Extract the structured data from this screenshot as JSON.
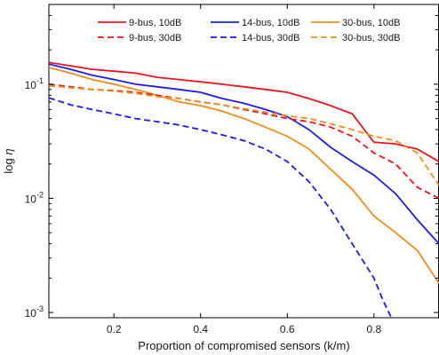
{
  "chart_data": {
    "type": "line",
    "title": "",
    "xlabel": "Proportion of compromised sensors (k/m)",
    "ylabel": "log η",
    "xlim": [
      0.05,
      0.95
    ],
    "ylim": [
      0.0009,
      0.5
    ],
    "yscale": "log",
    "grid": false,
    "legend": "top-right",
    "xticks": [
      0.2,
      0.4,
      0.6,
      0.8
    ],
    "xtick_labels": [
      "0.2",
      "0.4",
      "0.6",
      "0.8"
    ],
    "yticks": [
      0.001,
      0.01,
      0.1
    ],
    "ytick_labels": [
      {
        "base": "10",
        "exp": "-3"
      },
      {
        "base": "10",
        "exp": "-2"
      },
      {
        "base": "10",
        "exp": "-1"
      }
    ],
    "series": [
      {
        "name": "9-bus, 10dB",
        "color": "#e8141c",
        "dash": "solid",
        "x": [
          0.05,
          0.1,
          0.15,
          0.2,
          0.25,
          0.3,
          0.35,
          0.4,
          0.45,
          0.5,
          0.55,
          0.6,
          0.65,
          0.7,
          0.75,
          0.8,
          0.85,
          0.9,
          0.95
        ],
        "y": [
          0.155,
          0.145,
          0.135,
          0.13,
          0.125,
          0.115,
          0.11,
          0.105,
          0.1,
          0.095,
          0.09,
          0.085,
          0.075,
          0.065,
          0.055,
          0.031,
          0.03,
          0.027,
          0.021
        ]
      },
      {
        "name": "14-bus, 10dB",
        "color": "#1c1ce8",
        "dash": "solid",
        "x": [
          0.05,
          0.1,
          0.15,
          0.2,
          0.25,
          0.3,
          0.35,
          0.4,
          0.45,
          0.5,
          0.55,
          0.6,
          0.65,
          0.7,
          0.75,
          0.8,
          0.85,
          0.9,
          0.95
        ],
        "y": [
          0.15,
          0.135,
          0.12,
          0.11,
          0.1,
          0.095,
          0.09,
          0.085,
          0.075,
          0.068,
          0.06,
          0.052,
          0.04,
          0.028,
          0.021,
          0.016,
          0.011,
          0.0065,
          0.004
        ]
      },
      {
        "name": "30-bus, 10dB",
        "color": "#f28c1a",
        "dash": "solid",
        "x": [
          0.05,
          0.1,
          0.15,
          0.2,
          0.25,
          0.3,
          0.35,
          0.4,
          0.45,
          0.5,
          0.55,
          0.6,
          0.65,
          0.7,
          0.75,
          0.8,
          0.85,
          0.9,
          0.95
        ],
        "y": [
          0.14,
          0.125,
          0.11,
          0.1,
          0.09,
          0.08,
          0.07,
          0.065,
          0.058,
          0.05,
          0.042,
          0.035,
          0.027,
          0.018,
          0.012,
          0.007,
          0.005,
          0.0035,
          0.0018
        ]
      },
      {
        "name": "9-bus, 30dB",
        "color": "#e8141c",
        "dash": "dashed",
        "x": [
          0.05,
          0.1,
          0.15,
          0.2,
          0.25,
          0.3,
          0.35,
          0.4,
          0.45,
          0.5,
          0.55,
          0.6,
          0.65,
          0.7,
          0.75,
          0.8,
          0.85,
          0.9,
          0.95
        ],
        "y": [
          0.1,
          0.095,
          0.09,
          0.088,
          0.085,
          0.08,
          0.075,
          0.07,
          0.066,
          0.06,
          0.055,
          0.05,
          0.047,
          0.042,
          0.035,
          0.025,
          0.02,
          0.0125,
          0.01
        ]
      },
      {
        "name": "14-bus, 30dB",
        "color": "#1c1ce8",
        "dash": "dashed",
        "x": [
          0.05,
          0.1,
          0.15,
          0.2,
          0.25,
          0.3,
          0.35,
          0.4,
          0.45,
          0.5,
          0.55,
          0.6,
          0.65,
          0.7,
          0.75,
          0.8,
          0.82,
          0.84
        ],
        "y": [
          0.076,
          0.066,
          0.06,
          0.055,
          0.05,
          0.047,
          0.044,
          0.04,
          0.036,
          0.032,
          0.027,
          0.021,
          0.014,
          0.008,
          0.004,
          0.002,
          0.0013,
          0.0009
        ]
      },
      {
        "name": "30-bus, 30dB",
        "color": "#f28c1a",
        "dash": "dashed",
        "x": [
          0.05,
          0.1,
          0.15,
          0.2,
          0.25,
          0.3,
          0.35,
          0.4,
          0.45,
          0.5,
          0.55,
          0.6,
          0.65,
          0.7,
          0.75,
          0.8,
          0.85,
          0.9,
          0.95
        ],
        "y": [
          0.097,
          0.093,
          0.09,
          0.087,
          0.083,
          0.078,
          0.075,
          0.07,
          0.066,
          0.061,
          0.057,
          0.053,
          0.05,
          0.045,
          0.04,
          0.035,
          0.032,
          0.025,
          0.013
        ]
      }
    ]
  }
}
